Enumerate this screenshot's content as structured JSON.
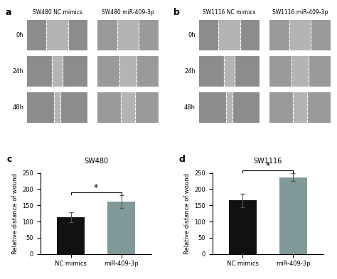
{
  "image_panels": [
    {
      "panel": "a",
      "columns": [
        "SW480 NC mimics",
        "SW480 miR-409-3p"
      ],
      "rows": [
        "0h",
        "24h",
        "48h"
      ]
    },
    {
      "panel": "b",
      "columns": [
        "SW1116 NC mimics",
        "SW1116 miR-409-3p"
      ],
      "rows": [
        "0h",
        "24h",
        "48h"
      ]
    }
  ],
  "chart_data": [
    {
      "type": "bar",
      "panel": "c",
      "title": "SW480",
      "y_label": "Relative distance of wound",
      "categories": [
        "NC mimics",
        "miR-409-3p"
      ],
      "values": [
        113,
        162
      ],
      "errors": [
        15,
        20
      ],
      "colors": [
        "#111111",
        "#7f9a99"
      ],
      "ylim": [
        0,
        250
      ],
      "yticks": [
        0,
        50,
        100,
        150,
        200,
        250
      ],
      "annotations": [
        {
          "text": "*",
          "categories": [
            "NC mimics",
            "miR-409-3p"
          ]
        }
      ]
    },
    {
      "type": "bar",
      "panel": "d",
      "title": "SW1116",
      "y_label": "Relative distance of wound",
      "categories": [
        "NC mimics",
        "miR-409-3p"
      ],
      "values": [
        165,
        237
      ],
      "errors": [
        20,
        12
      ],
      "colors": [
        "#111111",
        "#7f9a99"
      ],
      "ylim": [
        0,
        250
      ],
      "yticks": [
        0,
        50,
        100,
        150,
        200,
        250
      ],
      "annotations": [
        {
          "text": "*",
          "categories": [
            "NC mimics",
            "miR-409-3p"
          ]
        }
      ]
    }
  ]
}
